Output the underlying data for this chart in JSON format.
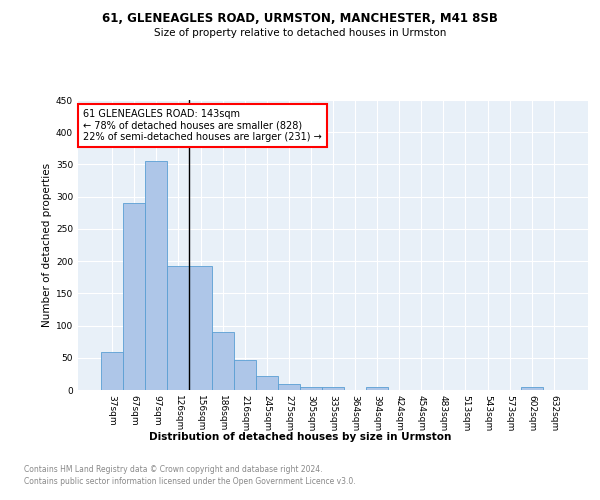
{
  "title1": "61, GLENEAGLES ROAD, URMSTON, MANCHESTER, M41 8SB",
  "title2": "Size of property relative to detached houses in Urmston",
  "xlabel": "Distribution of detached houses by size in Urmston",
  "ylabel": "Number of detached properties",
  "footnote1": "Contains HM Land Registry data © Crown copyright and database right 2024.",
  "footnote2": "Contains public sector information licensed under the Open Government Licence v3.0.",
  "bar_labels": [
    "37sqm",
    "67sqm",
    "97sqm",
    "126sqm",
    "156sqm",
    "186sqm",
    "216sqm",
    "245sqm",
    "275sqm",
    "305sqm",
    "335sqm",
    "364sqm",
    "394sqm",
    "424sqm",
    "454sqm",
    "483sqm",
    "513sqm",
    "543sqm",
    "573sqm",
    "602sqm",
    "632sqm"
  ],
  "bar_values": [
    59,
    290,
    355,
    193,
    192,
    90,
    47,
    21,
    9,
    5,
    5,
    0,
    5,
    0,
    0,
    0,
    0,
    0,
    0,
    5,
    0
  ],
  "bar_color": "#aec6e8",
  "bar_edge_color": "#5a9fd4",
  "annotation_text": "61 GLENEAGLES ROAD: 143sqm\n← 78% of detached houses are smaller (828)\n22% of semi-detached houses are larger (231) →",
  "annotation_box_color": "white",
  "annotation_box_edge_color": "red",
  "vline_x": 3.5,
  "vline_color": "black",
  "ylim": [
    0,
    450
  ],
  "yticks": [
    0,
    50,
    100,
    150,
    200,
    250,
    300,
    350,
    400,
    450
  ],
  "axes_bg_color": "#e8f0f8"
}
